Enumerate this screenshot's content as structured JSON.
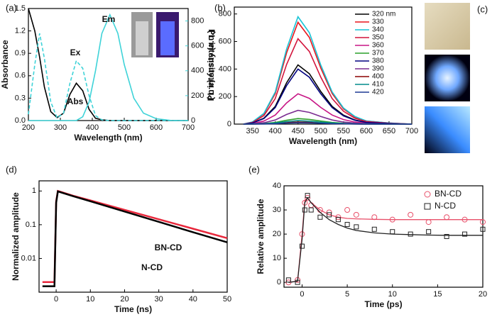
{
  "chart_data": [
    {
      "type": "line",
      "panel_label": "(a)",
      "x_label": "Wavelength (nm)",
      "y_label": "Absorbance",
      "y2_label": "PL intensity (a.u.)",
      "y2_color": "#3fd3d8",
      "legend": false,
      "x": [
        200,
        220,
        235,
        250,
        270,
        290,
        310,
        330,
        350,
        370,
        390,
        410,
        430,
        455,
        480,
        500,
        530,
        560,
        600,
        650,
        700
      ],
      "xlim": [
        200,
        700
      ],
      "xticks": [
        200,
        300,
        400,
        500,
        600,
        700
      ],
      "ylim": [
        0,
        1.5
      ],
      "yticks": [
        {
          "value": 0,
          "label": "0.0"
        },
        0.3,
        0.6,
        0.9,
        1.2,
        1.5
      ],
      "y2lim": [
        0,
        900
      ],
      "y2ticks": [
        0,
        200,
        400,
        600,
        800
      ],
      "series": [
        {
          "name": "Abs",
          "color": "#000000",
          "values": [
            1.5,
            1.2,
            0.85,
            0.45,
            0.12,
            0.04,
            0.1,
            0.35,
            0.5,
            0.4,
            0.15,
            0.03,
            0.01,
            0,
            0,
            0,
            0,
            0,
            0,
            0,
            0
          ]
        },
        {
          "name": "Ex",
          "color": "#3fd3d8",
          "axis": "y2",
          "dash": true,
          "values": [
            50,
            450,
            700,
            500,
            150,
            20,
            60,
            300,
            480,
            420,
            200,
            40,
            5,
            0,
            0,
            0,
            0,
            0,
            0,
            0,
            0
          ]
        },
        {
          "name": "Em",
          "color": "#3fd3d8",
          "axis": "y2",
          "values": [
            0,
            0,
            0,
            0,
            0,
            0,
            0,
            0,
            0,
            30,
            150,
            400,
            700,
            850,
            700,
            450,
            180,
            60,
            15,
            0,
            0
          ]
        }
      ]
    },
    {
      "type": "line",
      "panel_label": "(b)",
      "x_label": "Wavelength (nm)",
      "y_label": "PL intensity (a.u.)",
      "legend": "upper right",
      "x": [
        330,
        350,
        375,
        400,
        425,
        450,
        475,
        500,
        525,
        550,
        575,
        600,
        650,
        700
      ],
      "xlim": [
        310,
        700
      ],
      "xticks": [
        350,
        400,
        450,
        500,
        550,
        600,
        650,
        700
      ],
      "ylim": [
        0,
        850
      ],
      "yticks": [
        0,
        200,
        400,
        600,
        800
      ],
      "series": [
        {
          "name": "320 nm",
          "color": "#000000",
          "values": [
            0,
            9,
            43,
            129,
            301,
            430,
            366,
            237,
            129,
            65,
            30,
            13,
            4,
            0
          ]
        },
        {
          "name": "330",
          "color": "#e8141b",
          "values": [
            0,
            15,
            74,
            222,
            518,
            740,
            629,
            407,
            222,
            111,
            52,
            22,
            7,
            0
          ]
        },
        {
          "name": "340",
          "color": "#17c4d6",
          "values": [
            0,
            16,
            78,
            234,
            546,
            780,
            663,
            429,
            234,
            117,
            55,
            23,
            8,
            0
          ]
        },
        {
          "name": "350",
          "color": "#d2143c",
          "values": [
            0,
            12,
            62,
            186,
            434,
            620,
            527,
            341,
            186,
            93,
            43,
            19,
            6,
            0
          ]
        },
        {
          "name": "360",
          "color": "#c71585",
          "values": [
            0,
            4,
            22,
            66,
            154,
            220,
            187,
            121,
            66,
            33,
            15,
            7,
            2,
            0
          ]
        },
        {
          "name": "370",
          "color": "#2ca02c",
          "values": [
            0,
            1,
            4,
            12,
            28,
            40,
            34,
            22,
            12,
            6,
            3,
            1,
            0,
            0
          ]
        },
        {
          "name": "380",
          "color": "#000080",
          "values": [
            0,
            8,
            40,
            120,
            280,
            400,
            340,
            220,
            120,
            60,
            28,
            12,
            4,
            0
          ]
        },
        {
          "name": "390",
          "color": "#7b2c91",
          "values": [
            0,
            2,
            10,
            30,
            70,
            100,
            85,
            55,
            30,
            15,
            7,
            3,
            1,
            0
          ]
        },
        {
          "name": "400",
          "color": "#8b0000",
          "values": [
            0,
            0,
            2,
            5,
            11,
            15,
            13,
            8,
            5,
            2,
            1,
            0,
            0,
            0
          ]
        },
        {
          "name": "410",
          "color": "#008b8b",
          "values": [
            0,
            1,
            3,
            8,
            18,
            25,
            21,
            14,
            8,
            4,
            2,
            1,
            0,
            0
          ]
        },
        {
          "name": "420",
          "color": "#1f3a93",
          "values": [
            0,
            0,
            1,
            3,
            7,
            10,
            9,
            6,
            3,
            2,
            1,
            0,
            0,
            0
          ]
        }
      ]
    },
    {
      "type": "image",
      "panel_label": "(c)"
    },
    {
      "type": "line",
      "panel_label": "(d)",
      "x_label": "Time (ns)",
      "y_label": "Normalized amplitude",
      "legend": false,
      "log_y": true,
      "x": [
        -4,
        -2,
        -0.5,
        0,
        0.5,
        5,
        10,
        20,
        30,
        40,
        50
      ],
      "xlim": [
        -5,
        50
      ],
      "xticks": [
        0,
        10,
        20,
        30,
        40,
        50
      ],
      "ylim": [
        0.001,
        2
      ],
      "yticks": [
        0.01,
        0.1,
        1
      ],
      "series": [
        {
          "name": "BN-CD",
          "color": "#e8283c",
          "values": [
            0.002,
            0.002,
            0.002,
            0.5,
            1,
            0.72,
            0.525,
            0.276,
            0.145,
            0.076,
            0.04
          ]
        },
        {
          "name": "N-CD",
          "color": "#000000",
          "values": [
            0.0015,
            0.0015,
            0.0015,
            0.45,
            0.97,
            0.7,
            0.496,
            0.246,
            0.122,
            0.06,
            0.03
          ]
        }
      ]
    },
    {
      "type": "scatter",
      "panel_label": "(e)",
      "x_label": "Time (ps)",
      "y_label": "Relative amplitude",
      "legend": "upper right",
      "x": [
        -1.5,
        -0.5,
        0,
        0.3,
        0.6,
        1,
        2,
        3,
        4,
        5,
        6,
        8,
        10,
        12,
        14,
        16,
        18,
        20
      ],
      "xlim": [
        -2,
        20
      ],
      "xticks": [
        0,
        5,
        10,
        15,
        20
      ],
      "ylim": [
        -2,
        40
      ],
      "yticks": [
        0,
        10,
        20,
        30,
        40
      ],
      "series": [
        {
          "name": "BN-CD",
          "color": "#e8506a",
          "marker": "circle",
          "values": [
            0,
            1,
            20,
            33,
            35,
            32,
            30,
            29,
            27,
            30,
            28,
            27,
            26,
            28,
            25,
            27,
            26,
            25
          ],
          "fit": [
            0,
            0.5,
            20,
            34,
            35,
            33,
            30,
            28,
            27,
            26.5,
            26.3,
            26.1,
            26,
            26,
            26,
            26,
            26,
            26
          ]
        },
        {
          "name": "N-CD",
          "color": "#222222",
          "marker": "square",
          "values": [
            1,
            0,
            15,
            30,
            36,
            30,
            27,
            28,
            26,
            24,
            23,
            22,
            21,
            20,
            21,
            19,
            20,
            22
          ],
          "fit": [
            0,
            0.5,
            18,
            33,
            35,
            33,
            29,
            26,
            24,
            22.5,
            21.5,
            20.5,
            20,
            19.8,
            19.6,
            19.5,
            19.5,
            19.5
          ]
        }
      ]
    }
  ]
}
